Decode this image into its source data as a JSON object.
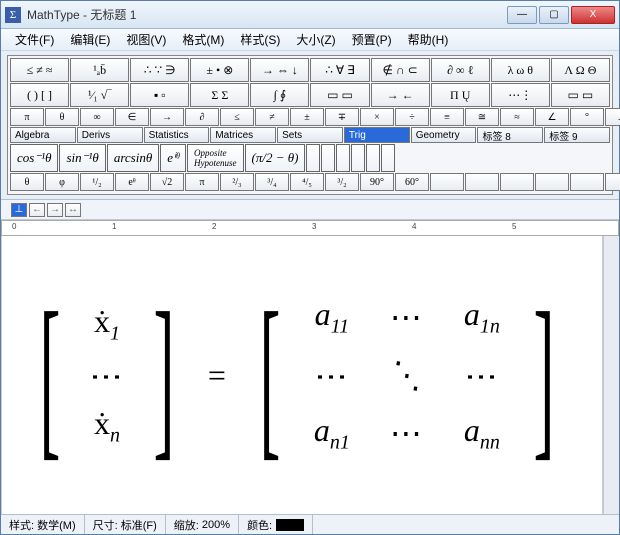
{
  "app": {
    "sigma": "Σ",
    "title": "MathType - 无标题 1"
  },
  "winbtns": {
    "min": "—",
    "max": "▢",
    "close": "X"
  },
  "menu": [
    "文件(F)",
    "编辑(E)",
    "视图(V)",
    "格式(M)",
    "样式(S)",
    "大小(Z)",
    "预置(P)",
    "帮助(H)"
  ],
  "palette": {
    "row1": [
      "≤ ≠ ≈",
      "¹ₐb̄",
      "∴ ∵ ∋",
      "± • ⊗",
      "→ ⇔ ↓",
      "∴ ∀ ∃",
      "∉ ∩ ⊂",
      "∂ ∞ ℓ",
      "λ ω θ",
      "Λ Ω Θ"
    ],
    "row2": [
      "( ) [ ]",
      "¹⁄₁ √‾",
      "▪ ▫",
      "Σ Σ",
      "∫ ∮",
      "▭ ▭",
      "→ ←",
      "Π Ų",
      "⋯⋮",
      "▭ ▭"
    ],
    "row3": [
      "π",
      "θ",
      "∞",
      "∈",
      "→",
      "∂",
      "≤",
      "≠",
      "±",
      "∓",
      "×",
      "÷",
      "≡",
      "≅",
      "≈",
      "∠",
      "°",
      "⊥",
      "∥",
      "√"
    ],
    "tabs": [
      "Algebra",
      "Derivs",
      "Statistics",
      "Matrices",
      "Sets",
      "Trig",
      "Geometry",
      "标签 8",
      "标签 9"
    ],
    "activeTab": 5,
    "bigbtns": [
      "cos⁻¹θ",
      "sin⁻¹θ",
      "arcsinθ",
      "eⁱᶿ",
      "Opposite\nHypotenuse",
      "(π/2 − θ)"
    ],
    "row5": [
      "θ",
      "φ",
      "¹/₂",
      "eᶿ",
      "√2",
      "π",
      "²/₃",
      "³/₄",
      "⁴/₅",
      "³/₂",
      "90°",
      "60°",
      "",
      "",
      "",
      "",
      "",
      "",
      "",
      ""
    ]
  },
  "ruler": {
    "marks": [
      "0",
      "1",
      "2",
      "3",
      "4",
      "5"
    ],
    "tabicons": [
      "⊥",
      "←",
      "→",
      "↔"
    ]
  },
  "equation": {
    "left": [
      "ẋ₁",
      "⋮",
      "ẋₙ"
    ],
    "eq": "=",
    "right": [
      [
        "a₁₁",
        "⋯",
        "a₁ₙ"
      ],
      [
        "⋮",
        "⋱",
        "⋮"
      ],
      [
        "aₙ₁",
        "⋯",
        "aₙₙ"
      ]
    ]
  },
  "status": {
    "style_label": "样式:",
    "style_val": "数学(M)",
    "size_label": "尺寸:",
    "size_val": "标准(F)",
    "zoom_label": "缩放:",
    "zoom_val": "200%",
    "color_label": "颜色:"
  },
  "colors": {
    "titlebar_top": "#f0f6fc",
    "titlebar_bot": "#d8e5f3",
    "accent": "#2a6ad8",
    "close": "#c33"
  }
}
